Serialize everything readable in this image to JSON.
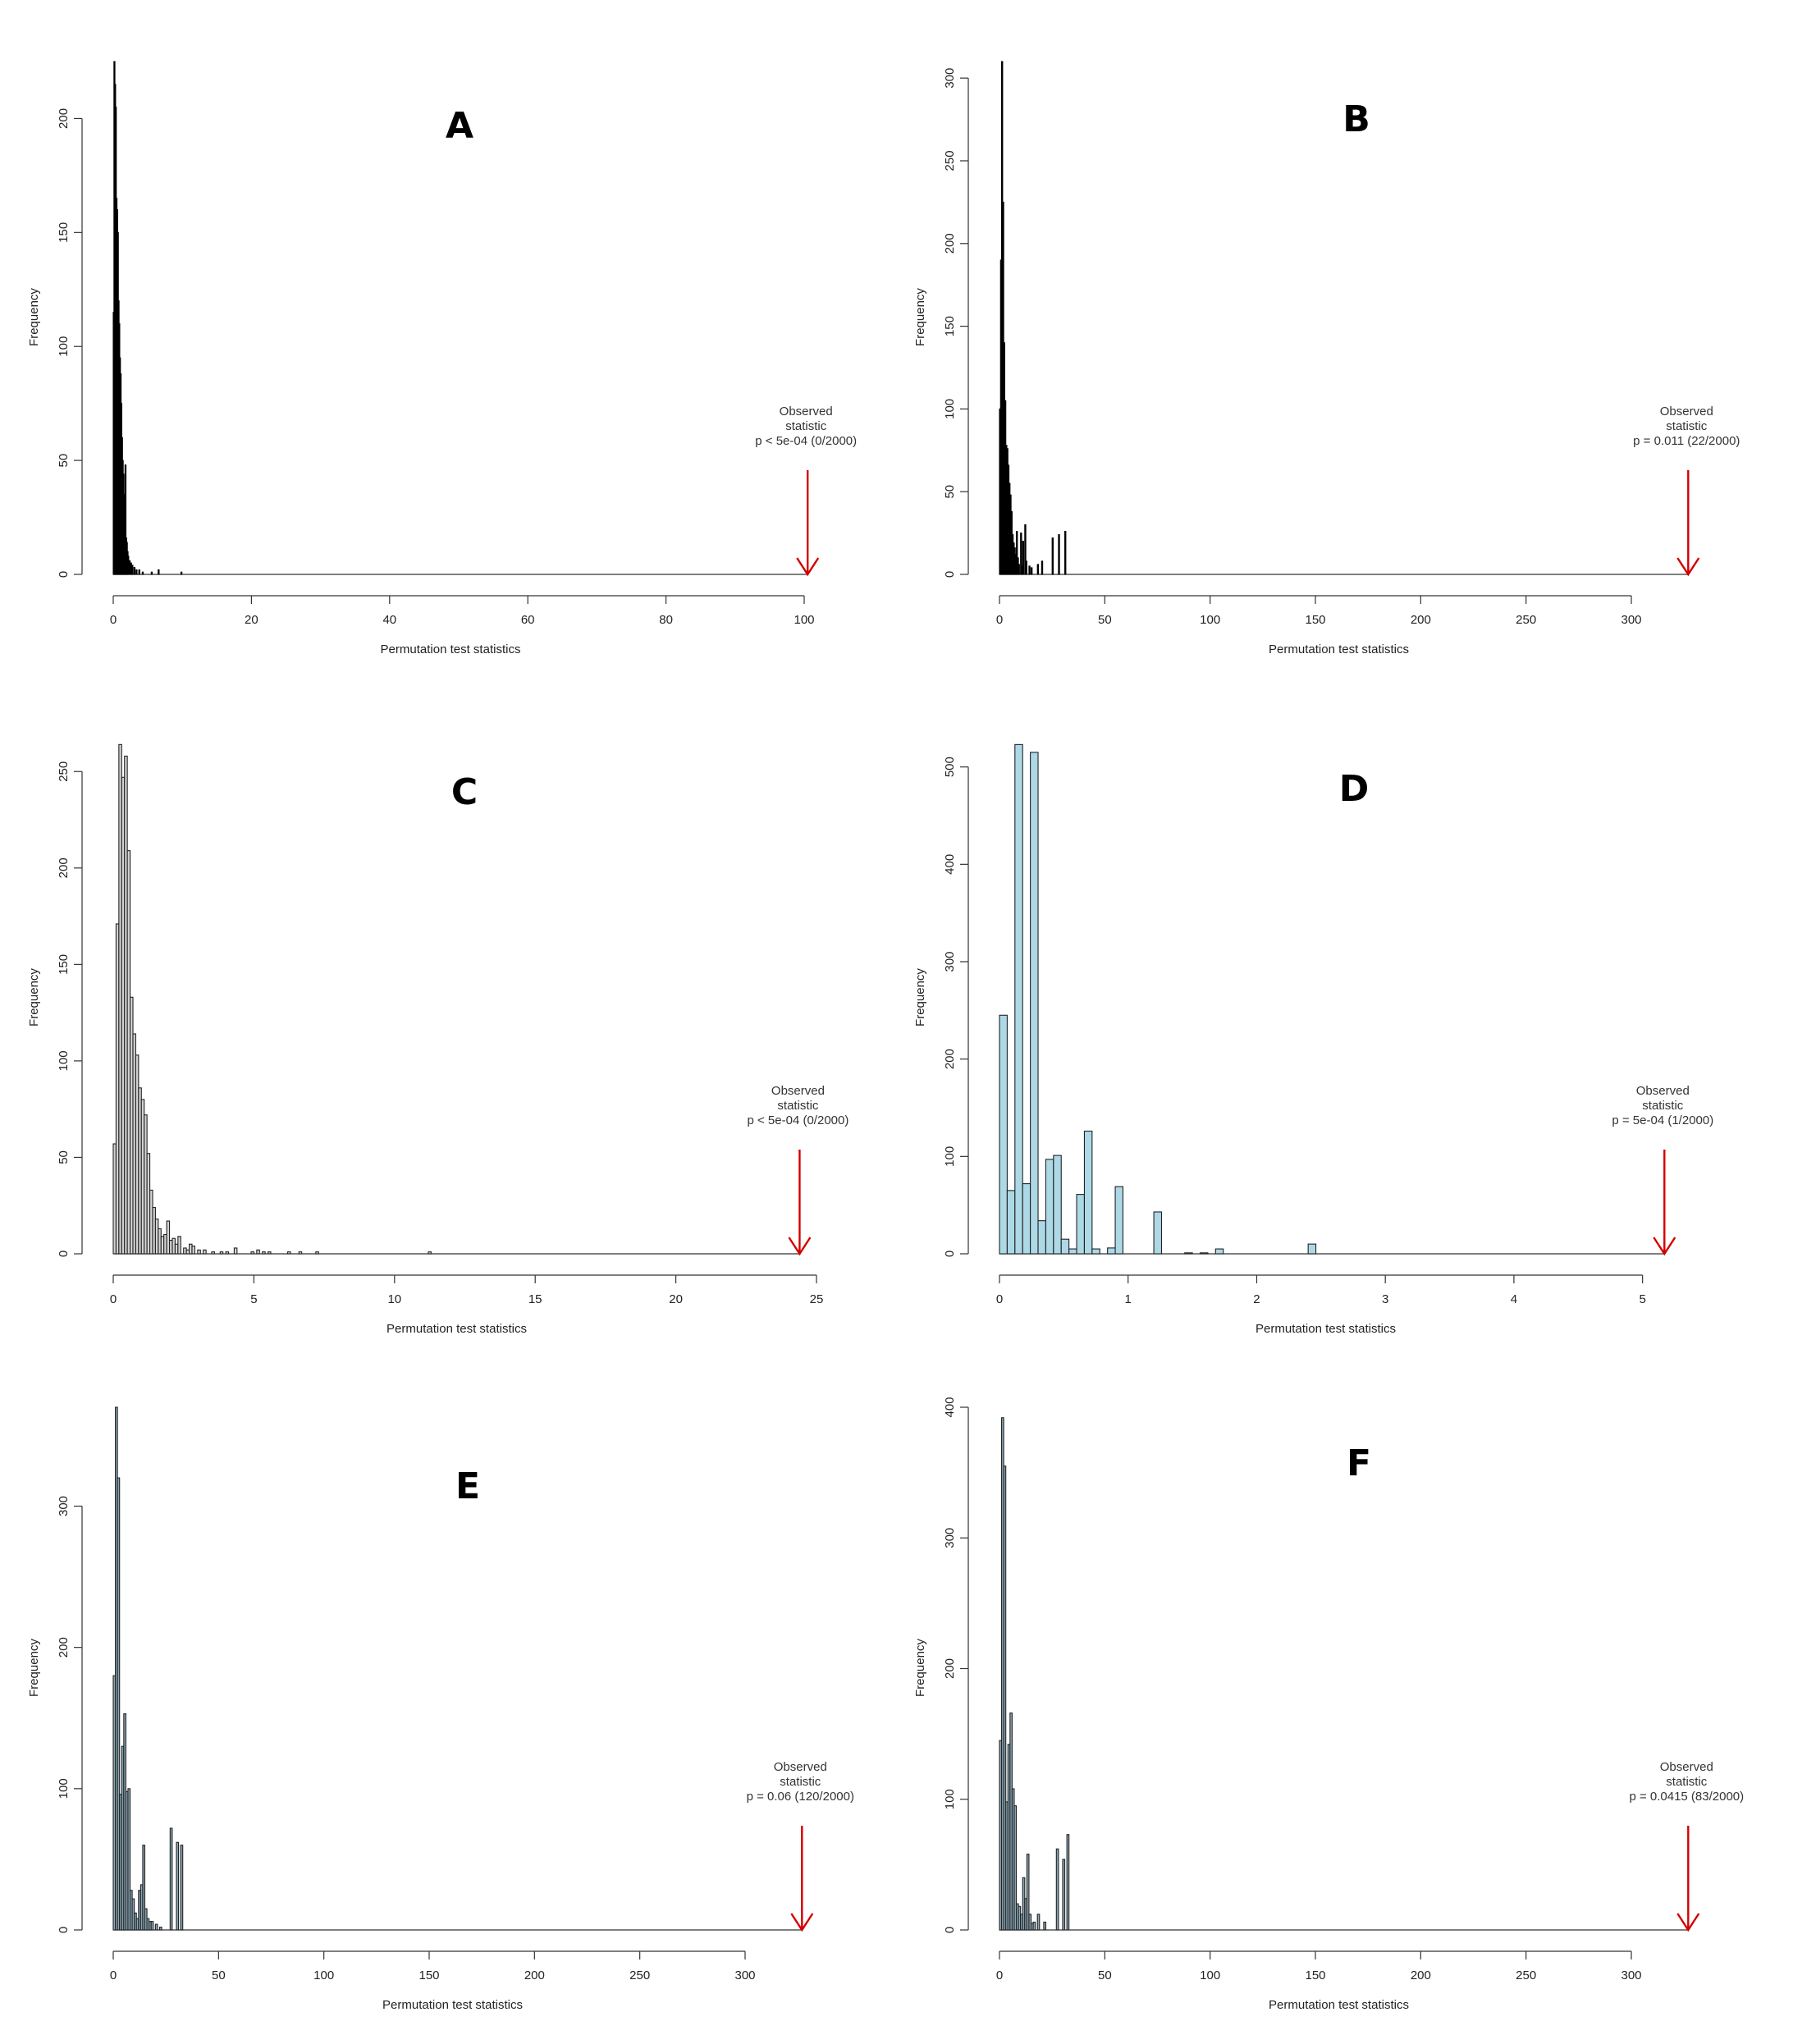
{
  "chart_data": [
    {
      "type": "bar",
      "panel": "A",
      "xlabel": "Permutation test statistics",
      "ylabel": "Frequency",
      "xlim": [
        0,
        100
      ],
      "ylim": [
        0,
        225
      ],
      "xticks": [
        0,
        20,
        40,
        60,
        80,
        100
      ],
      "yticks": [
        0,
        50,
        100,
        150,
        200
      ],
      "bar_color": "#000000",
      "bar_fill": "#000000",
      "bin_width": 0.1,
      "bins": [
        [
          0.0,
          115
        ],
        [
          0.1,
          225
        ],
        [
          0.2,
          215
        ],
        [
          0.3,
          205
        ],
        [
          0.4,
          165
        ],
        [
          0.5,
          160
        ],
        [
          0.6,
          150
        ],
        [
          0.7,
          120
        ],
        [
          0.8,
          110
        ],
        [
          0.9,
          95
        ],
        [
          1.0,
          88
        ],
        [
          1.1,
          75
        ],
        [
          1.2,
          60
        ],
        [
          1.3,
          50
        ],
        [
          1.4,
          44
        ],
        [
          1.5,
          35
        ],
        [
          1.6,
          26
        ],
        [
          1.7,
          48
        ],
        [
          1.8,
          16
        ],
        [
          1.9,
          14
        ],
        [
          2.0,
          10
        ],
        [
          2.1,
          8
        ],
        [
          2.3,
          6
        ],
        [
          2.5,
          5
        ],
        [
          2.7,
          4
        ],
        [
          3.0,
          3
        ],
        [
          3.3,
          2
        ],
        [
          3.7,
          2
        ],
        [
          4.2,
          1
        ],
        [
          5.5,
          1
        ],
        [
          6.5,
          2
        ],
        [
          9.8,
          1
        ]
      ],
      "observed": {
        "value": 100.5,
        "lines": [
          "Observed",
          "statistic",
          "p < 5e-04 (0/2000)"
        ]
      }
    },
    {
      "type": "bar",
      "panel": "B",
      "xlabel": "Permutation test statistics",
      "ylabel": "Frequency",
      "xlim": [
        0,
        330
      ],
      "ylim": [
        0,
        310
      ],
      "xticks": [
        0,
        50,
        100,
        150,
        200,
        250,
        300
      ],
      "yticks": [
        0,
        50,
        100,
        150,
        200,
        250,
        300
      ],
      "bar_color": "#000000",
      "bar_fill": "#000000",
      "bin_width": 0.5,
      "bins": [
        [
          0.0,
          100
        ],
        [
          0.5,
          190
        ],
        [
          1.0,
          310
        ],
        [
          1.5,
          225
        ],
        [
          2.0,
          140
        ],
        [
          2.5,
          105
        ],
        [
          3.0,
          78
        ],
        [
          3.5,
          76
        ],
        [
          4.0,
          66
        ],
        [
          4.5,
          55
        ],
        [
          5.0,
          48
        ],
        [
          5.5,
          38
        ],
        [
          6.0,
          24
        ],
        [
          6.5,
          19
        ],
        [
          7.0,
          16
        ],
        [
          7.5,
          12
        ],
        [
          8.0,
          26
        ],
        [
          8.5,
          10
        ],
        [
          9.0,
          6
        ],
        [
          10.0,
          25
        ],
        [
          10.5,
          5
        ],
        [
          11.0,
          20
        ],
        [
          12.0,
          30
        ],
        [
          12.5,
          8
        ],
        [
          14.0,
          5
        ],
        [
          15.0,
          4
        ],
        [
          18.0,
          6
        ],
        [
          20.0,
          8
        ],
        [
          25.0,
          22
        ],
        [
          28.0,
          24
        ],
        [
          31.0,
          26
        ]
      ],
      "observed": {
        "value": 327,
        "lines": [
          "Observed",
          "statistic",
          "p = 0.011 (22/2000)"
        ]
      }
    },
    {
      "type": "bar",
      "panel": "C",
      "xlabel": "Permutation test statistics",
      "ylabel": "Frequency",
      "xlim": [
        0,
        25
      ],
      "ylim": [
        0,
        265
      ],
      "xticks": [
        0,
        5,
        10,
        15,
        20,
        25
      ],
      "yticks": [
        0,
        50,
        100,
        150,
        200,
        250
      ],
      "bar_color": "#222222",
      "bar_fill": "#d3d3d3",
      "bin_width": 0.1,
      "bins": [
        [
          0.0,
          57
        ],
        [
          0.1,
          171
        ],
        [
          0.2,
          264
        ],
        [
          0.3,
          247
        ],
        [
          0.4,
          258
        ],
        [
          0.5,
          209
        ],
        [
          0.6,
          133
        ],
        [
          0.7,
          114
        ],
        [
          0.8,
          103
        ],
        [
          0.9,
          86
        ],
        [
          1.0,
          80
        ],
        [
          1.1,
          72
        ],
        [
          1.2,
          52
        ],
        [
          1.3,
          33
        ],
        [
          1.4,
          24
        ],
        [
          1.5,
          18
        ],
        [
          1.6,
          13
        ],
        [
          1.7,
          9
        ],
        [
          1.8,
          10
        ],
        [
          1.9,
          17
        ],
        [
          2.0,
          7
        ],
        [
          2.1,
          8
        ],
        [
          2.2,
          5
        ],
        [
          2.3,
          9
        ],
        [
          2.5,
          3
        ],
        [
          2.6,
          2
        ],
        [
          2.7,
          5
        ],
        [
          2.8,
          4
        ],
        [
          3.0,
          2
        ],
        [
          3.2,
          2
        ],
        [
          3.5,
          1
        ],
        [
          3.8,
          1
        ],
        [
          4.0,
          1
        ],
        [
          4.3,
          3
        ],
        [
          4.9,
          1
        ],
        [
          5.1,
          2
        ],
        [
          5.3,
          1
        ],
        [
          5.5,
          1
        ],
        [
          6.2,
          1
        ],
        [
          6.6,
          1
        ],
        [
          7.2,
          1
        ],
        [
          11.2,
          1
        ]
      ],
      "observed": {
        "value": 24.4,
        "lines": [
          "Observed",
          "statistic",
          "p < 5e-04 (0/2000)"
        ]
      }
    },
    {
      "type": "bar",
      "panel": "D",
      "xlabel": "Permutation test statistics",
      "ylabel": "Frequency",
      "xlim": [
        0,
        5.2
      ],
      "ylim": [
        0,
        525
      ],
      "xticks": [
        0,
        1,
        2,
        3,
        4,
        5
      ],
      "yticks": [
        0,
        100,
        200,
        300,
        400,
        500
      ],
      "bar_color": "#222222",
      "bar_fill": "#add8e6",
      "bin_width": 0.06,
      "bins": [
        [
          0.0,
          245
        ],
        [
          0.06,
          65
        ],
        [
          0.12,
          523
        ],
        [
          0.18,
          72
        ],
        [
          0.24,
          515
        ],
        [
          0.3,
          34
        ],
        [
          0.36,
          97
        ],
        [
          0.42,
          101
        ],
        [
          0.48,
          15
        ],
        [
          0.54,
          5
        ],
        [
          0.6,
          61
        ],
        [
          0.66,
          126
        ],
        [
          0.72,
          5
        ],
        [
          0.84,
          6
        ],
        [
          0.9,
          69
        ],
        [
          1.2,
          43
        ],
        [
          1.44,
          1
        ],
        [
          1.56,
          1
        ],
        [
          1.68,
          5
        ],
        [
          2.4,
          10
        ]
      ],
      "observed": {
        "value": 5.17,
        "lines": [
          "Observed",
          "statistic",
          "p = 5e-04 (1/2000)"
        ]
      }
    },
    {
      "type": "bar",
      "panel": "E",
      "xlabel": "Permutation test statistics",
      "ylabel": "Frequency",
      "xlim": [
        0,
        330
      ],
      "ylim": [
        0,
        370
      ],
      "xticks": [
        0,
        50,
        100,
        150,
        200,
        250,
        300
      ],
      "yticks": [
        0,
        100,
        200,
        300
      ],
      "bar_color": "#222222",
      "bar_fill": "#8aa7b6",
      "bin_width": 1,
      "bins": [
        [
          0,
          180
        ],
        [
          1,
          370
        ],
        [
          2,
          320
        ],
        [
          3,
          96
        ],
        [
          4,
          130
        ],
        [
          5,
          153
        ],
        [
          6,
          98
        ],
        [
          7,
          100
        ],
        [
          8,
          28
        ],
        [
          9,
          22
        ],
        [
          10,
          12
        ],
        [
          11,
          8
        ],
        [
          12,
          28
        ],
        [
          13,
          32
        ],
        [
          14,
          60
        ],
        [
          15,
          15
        ],
        [
          16,
          8
        ],
        [
          17,
          6
        ],
        [
          18,
          6
        ],
        [
          20,
          4
        ],
        [
          22,
          2
        ],
        [
          27,
          72
        ],
        [
          30,
          62
        ],
        [
          32,
          60
        ]
      ],
      "observed": {
        "value": 327,
        "lines": [
          "Observed",
          "statistic",
          "p = 0.06 (120/2000)"
        ]
      }
    },
    {
      "type": "bar",
      "panel": "F",
      "xlabel": "Permutation test statistics",
      "ylabel": "Frequency",
      "xlim": [
        0,
        330
      ],
      "ylim": [
        0,
        400
      ],
      "xticks": [
        0,
        50,
        100,
        150,
        200,
        250,
        300
      ],
      "yticks": [
        0,
        100,
        200,
        300,
        400
      ],
      "bar_color": "#222222",
      "bar_fill": "#8aa7b6",
      "bin_width": 1,
      "bins": [
        [
          0,
          145
        ],
        [
          1,
          392
        ],
        [
          2,
          355
        ],
        [
          3,
          98
        ],
        [
          4,
          142
        ],
        [
          5,
          166
        ],
        [
          6,
          108
        ],
        [
          7,
          95
        ],
        [
          8,
          20
        ],
        [
          9,
          18
        ],
        [
          10,
          12
        ],
        [
          11,
          40
        ],
        [
          12,
          24
        ],
        [
          13,
          58
        ],
        [
          14,
          12
        ],
        [
          15,
          5
        ],
        [
          16,
          6
        ],
        [
          18,
          12
        ],
        [
          21,
          6
        ],
        [
          27,
          62
        ],
        [
          30,
          54
        ],
        [
          32,
          73
        ]
      ],
      "observed": {
        "value": 327,
        "lines": [
          "Observed",
          "statistic",
          "p = 0.0415 (83/2000)"
        ]
      }
    }
  ]
}
